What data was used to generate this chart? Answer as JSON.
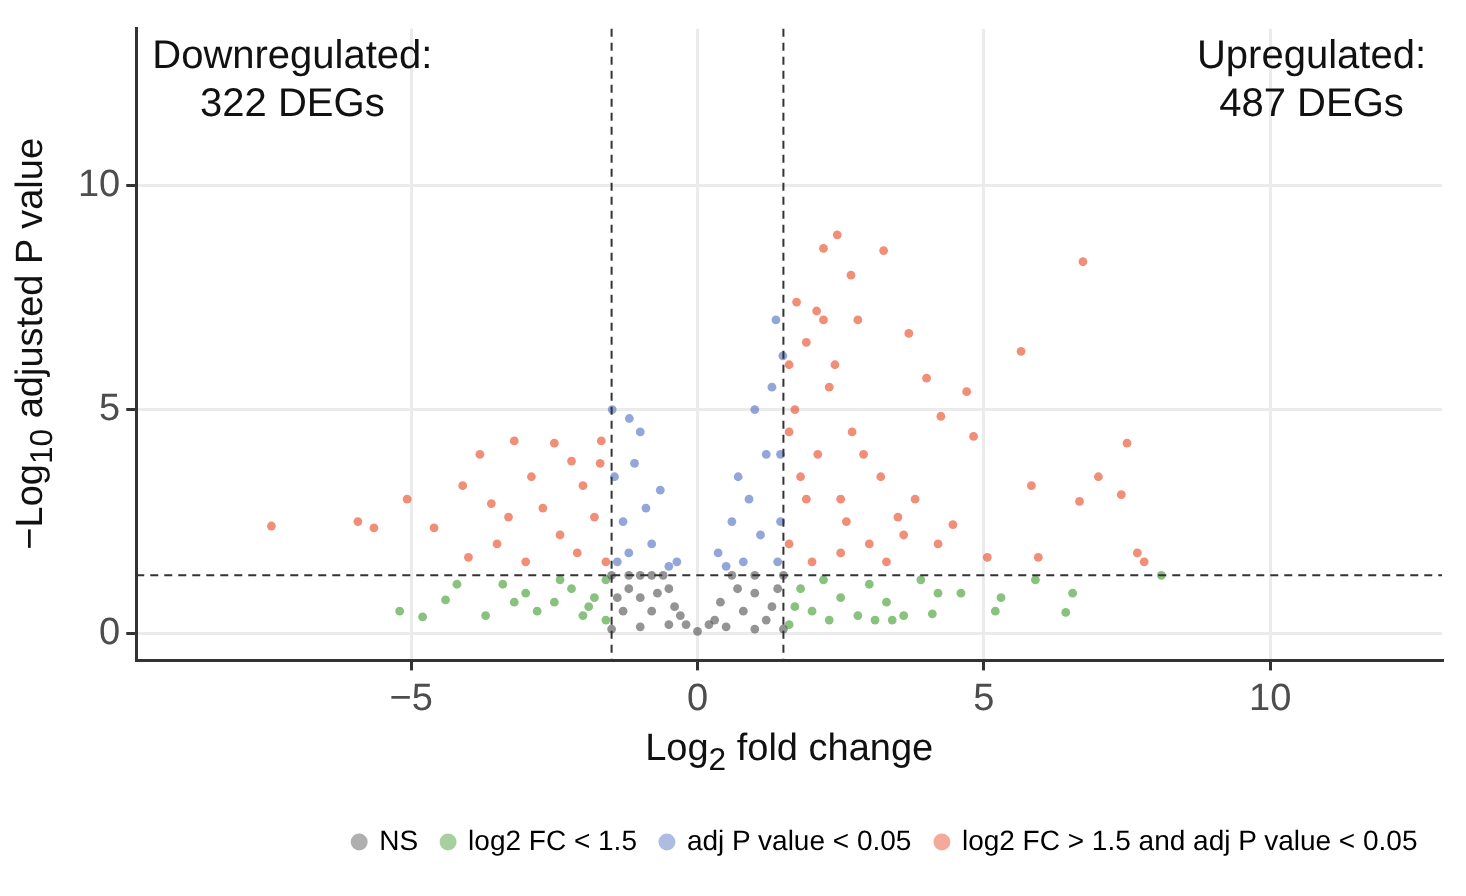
{
  "chart_data": {
    "type": "scatter",
    "xlabel": "Log$_{2}$ fold change",
    "ylabel": "−Log$_{10}$ adjusted P value",
    "xlim": [
      -9.8,
      13
    ],
    "xticks": [
      -5,
      0,
      5,
      10
    ],
    "ylim": [
      -0.6,
      13.5
    ],
    "yticks": [
      0,
      5,
      10
    ],
    "grid": true,
    "legend": "bottom",
    "marker": "circle",
    "ref_lines": [
      {
        "axis": "x",
        "value": -1.5,
        "line_style": "dashed",
        "color": "#333333"
      },
      {
        "axis": "x",
        "value": 1.5,
        "line_style": "dashed",
        "color": "#333333"
      },
      {
        "axis": "y",
        "value": 1.3,
        "line_style": "dashed",
        "color": "#333333"
      }
    ],
    "annotations": [
      "Downregulated:\n322 DEGs",
      "Upregulated:\n487 DEGs"
    ],
    "series": [
      {
        "name": "NS",
        "color": "#4d4d4d",
        "x": [
          -1.5,
          -1.5,
          -1.2,
          -1,
          -0.8,
          -0.6,
          -0.5,
          -0.4,
          -0.2,
          0,
          0.2,
          0.4,
          0.6,
          1,
          1.5,
          1.5,
          1,
          -1,
          -1.3,
          -1,
          -0.8,
          0.8,
          1,
          1.3,
          -0.5,
          0.5,
          1.2,
          -1.2,
          0.3,
          -0.3,
          1.4,
          -1.4,
          0.7,
          -0.7
        ],
        "values": [
          0.1,
          1.3,
          1.3,
          1.3,
          1.3,
          1.3,
          1,
          0.6,
          0.2,
          0.05,
          0.2,
          0.7,
          1.3,
          1.3,
          1.3,
          0.1,
          0.1,
          0.15,
          0.5,
          0.8,
          0.5,
          0.5,
          0.9,
          0.6,
          0.2,
          0.15,
          0.3,
          1,
          0.3,
          0.4,
          1,
          0.8,
          1,
          0.9
        ]
      },
      {
        "name": "log2 FC < 1.5",
        "color": "#3a9a2a",
        "x": [
          -5.2,
          -4.8,
          -4.4,
          -3.7,
          -3.4,
          -3,
          -2.8,
          -2.5,
          -2.2,
          -2,
          -1.8,
          -1.6,
          -1.6,
          -2.4,
          -3.2,
          -1.9,
          -4.2,
          1.6,
          1.8,
          2,
          2.2,
          2.5,
          2.8,
          3,
          3.3,
          3.6,
          3.9,
          4.2,
          4.6,
          5.2,
          5.3,
          5.9,
          6.43,
          6.55,
          8.1,
          1.7,
          2.3,
          3.1,
          3.4,
          4.1
        ],
        "values": [
          0.5,
          0.37,
          0.75,
          0.4,
          1.1,
          0.9,
          0.5,
          0.7,
          1,
          0.4,
          0.8,
          1.2,
          0.3,
          1.2,
          0.7,
          0.6,
          1.1,
          0.2,
          1,
          0.5,
          1.2,
          0.8,
          0.4,
          1.1,
          0.7,
          0.4,
          1.2,
          0.9,
          0.9,
          0.5,
          0.8,
          1.2,
          0.47,
          0.9,
          1.3,
          0.6,
          0.3,
          0.3,
          0.3,
          0.44
        ]
      },
      {
        "name": "adj P value < 0.05",
        "color": "#4a6bbf",
        "x": [
          -1.49,
          -1.19,
          -1,
          -0.65,
          -0.36,
          -1.45,
          -1.3,
          -1.1,
          -0.9,
          -0.8,
          -1.4,
          -1.2,
          -0.5,
          1.37,
          0.71,
          0.36,
          1,
          1.49,
          1.45,
          1.2,
          0.9,
          0.6,
          1.3,
          1.1,
          0.8,
          0.5,
          1.45,
          1.4
        ],
        "values": [
          5,
          4.8,
          4.5,
          3.2,
          1.6,
          3.5,
          2.5,
          3.8,
          2.8,
          2,
          1.6,
          1.8,
          1.5,
          7,
          3.5,
          1.8,
          5,
          6.2,
          4,
          4,
          3,
          2.5,
          5.5,
          2.2,
          1.6,
          1.5,
          2.5,
          1.6
        ]
      },
      {
        "name": "log2 FC > 1.5 and adj P value < 0.05",
        "color": "#e8421c",
        "x": [
          -7.44,
          -5.93,
          -5.65,
          -5.07,
          -3.8,
          -3.2,
          -2.5,
          -1.68,
          -4.1,
          -4.6,
          -2.2,
          -3.5,
          -3,
          -2.7,
          -2.4,
          -2,
          -1.8,
          -1.6,
          -2.9,
          -3.3,
          -2.1,
          -1.7,
          -4,
          -3.6,
          2.44,
          2.2,
          3.25,
          6.73,
          1.73,
          5.65,
          4.7,
          7.5,
          7.8,
          7.68,
          6.67,
          7,
          7.4,
          4.82,
          5.83,
          4.46,
          5.06,
          5.95,
          3.69,
          4,
          4.25,
          2.68,
          2.08,
          2.8,
          1.6,
          1.7,
          1.9,
          2.1,
          2.3,
          2.5,
          2.7,
          3,
          3.2,
          3.5,
          1.6,
          1.8,
          2,
          2.4,
          2.6,
          2.9,
          3.3,
          3.6,
          1.6,
          1.9,
          2.2,
          2.5,
          3.8,
          4.2
        ],
        "values": [
          2.4,
          2.5,
          2.36,
          3,
          4,
          4.3,
          4.25,
          4.3,
          3.3,
          2.36,
          3.85,
          2,
          1.6,
          2.8,
          2.2,
          3.3,
          2.6,
          1.6,
          3.5,
          2.6,
          1.8,
          3.8,
          1.7,
          2.9,
          8.9,
          8.6,
          8.55,
          8.3,
          7.4,
          6.3,
          5.4,
          4.25,
          1.6,
          1.8,
          2.95,
          3.5,
          3.1,
          4.4,
          3.3,
          2.43,
          1.7,
          1.7,
          6.7,
          5.7,
          4.85,
          8,
          7.2,
          7,
          6,
          5,
          6.5,
          4,
          5.5,
          3,
          4.5,
          2,
          3.5,
          2.6,
          2,
          3.5,
          1.6,
          6,
          2.5,
          4,
          1.6,
          2.2,
          4.5,
          3,
          7,
          1.8,
          3,
          2
        ]
      }
    ]
  }
}
